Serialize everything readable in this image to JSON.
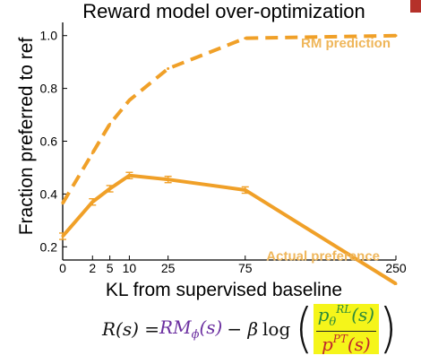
{
  "chart_data": {
    "type": "line",
    "title": "Reward model over-optimization",
    "xlabel": "KL from supervised baseline",
    "ylabel": "Fraction preferred to ref",
    "x_scale": "square-root",
    "xlim": [
      0,
      250
    ],
    "ylim": [
      0.15,
      1.05
    ],
    "x_ticks": [
      0,
      2,
      5,
      10,
      25,
      75,
      250
    ],
    "x_tick_labels": [
      "0",
      "2",
      "5",
      "10",
      "25",
      "75",
      "250"
    ],
    "y_ticks": [
      0.2,
      0.4,
      0.6,
      0.8,
      1.0
    ],
    "y_tick_labels": [
      "0.2",
      "0.4",
      "0.6",
      "0.8",
      "1.0"
    ],
    "grid": false,
    "color": "#f0a028",
    "series": [
      {
        "name": "RM prediction",
        "style": "dashed",
        "x": [
          0,
          2,
          5,
          10,
          25,
          75,
          250
        ],
        "y": [
          0.365,
          0.555,
          0.665,
          0.755,
          0.875,
          0.99,
          1.0
        ],
        "error": []
      },
      {
        "name": "Actual preference",
        "style": "solid",
        "x": [
          0,
          2,
          5,
          10,
          25,
          75,
          250
        ],
        "y": [
          0.24,
          0.37,
          0.42,
          0.47,
          0.455,
          0.415,
          0.06
        ],
        "error": [
          0.012,
          0.012,
          0.012,
          0.012,
          0.012,
          0.012,
          0
        ]
      }
    ]
  },
  "formula": {
    "lhs": "R(s) = ",
    "rm_symbol": "RM",
    "rm_subscript": "ϕ",
    "rm_arg": "(s)",
    "minus_beta": "− β",
    "log": "log",
    "open_paren": "(",
    "close_paren": ")",
    "num_base": "p",
    "num_sup": "RL",
    "num_sub": "θ",
    "num_arg": "(s)",
    "den_base": "p",
    "den_sup": "PT",
    "den_arg": "(s)"
  }
}
